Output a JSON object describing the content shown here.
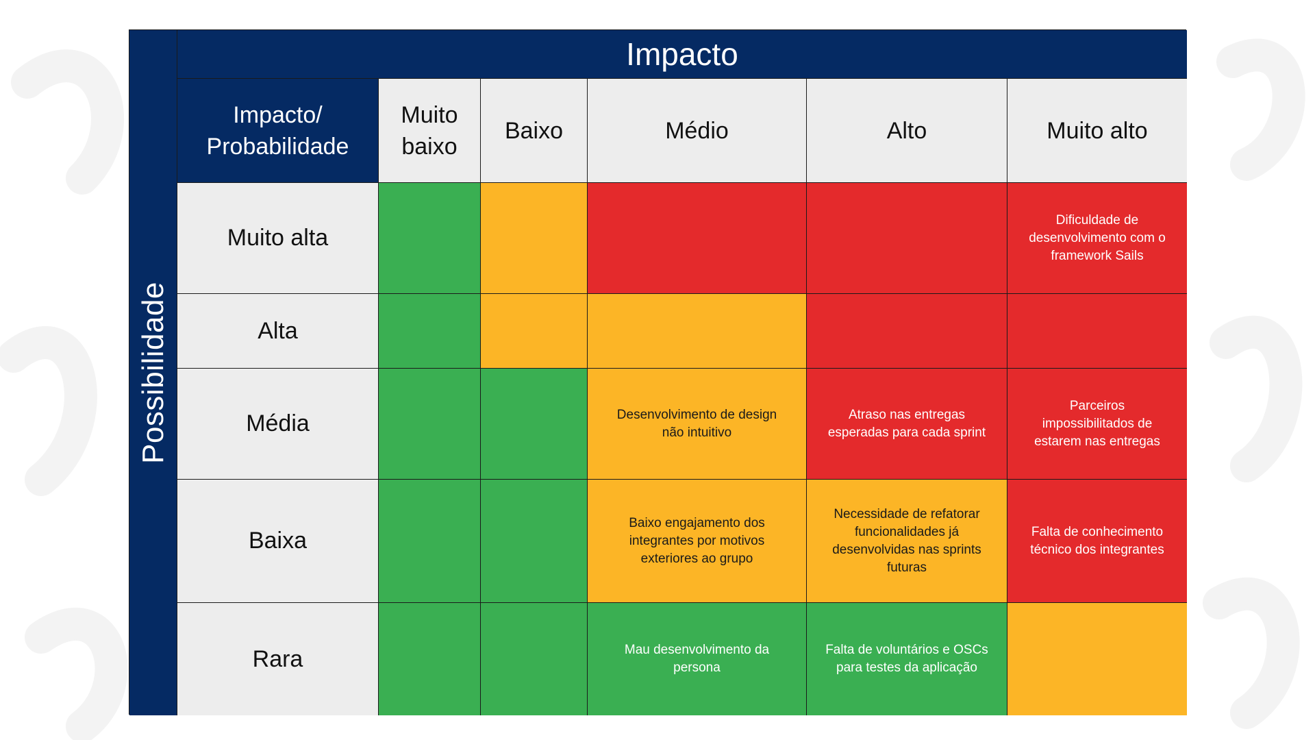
{
  "impact_title": "Impacto",
  "probability_title": "Possibilidade",
  "corner_label_1": "Impacto/",
  "corner_label_2": "Probabilidade",
  "columns": [
    {
      "line1": "Muito",
      "line2": "baixo"
    },
    {
      "line1": "Baixo",
      "line2": ""
    },
    {
      "line1": "Médio",
      "line2": ""
    },
    {
      "line1": "Alto",
      "line2": ""
    },
    {
      "line1": "Muito alto",
      "line2": ""
    }
  ],
  "rows": [
    {
      "label": "Muito alta",
      "cells": [
        {
          "color": "green",
          "text": ""
        },
        {
          "color": "yellow",
          "text": ""
        },
        {
          "color": "red",
          "text": ""
        },
        {
          "color": "red",
          "text": ""
        },
        {
          "color": "red",
          "text": "Dificuldade de desenvolvimento com o framework Sails"
        }
      ]
    },
    {
      "label": "Alta",
      "cells": [
        {
          "color": "green",
          "text": ""
        },
        {
          "color": "yellow",
          "text": ""
        },
        {
          "color": "yellow",
          "text": ""
        },
        {
          "color": "red",
          "text": ""
        },
        {
          "color": "red",
          "text": ""
        }
      ]
    },
    {
      "label": "Média",
      "cells": [
        {
          "color": "green",
          "text": ""
        },
        {
          "color": "green",
          "text": ""
        },
        {
          "color": "yellow",
          "text": "Desenvolvimento de design não intuitivo"
        },
        {
          "color": "red",
          "text": "Atraso nas entregas esperadas para cada sprint"
        },
        {
          "color": "red",
          "text": "Parceiros impossibilitados de estarem nas entregas"
        }
      ]
    },
    {
      "label": "Baixa",
      "cells": [
        {
          "color": "green",
          "text": ""
        },
        {
          "color": "green",
          "text": ""
        },
        {
          "color": "yellow",
          "text": "Baixo engajamento dos integrantes por motivos exteriores ao grupo"
        },
        {
          "color": "yellow",
          "text": "Necessidade de refatorar funcionalidades já desenvolvidas nas sprints futuras"
        },
        {
          "color": "red",
          "text": "Falta de conhecimento técnico dos integrantes"
        }
      ]
    },
    {
      "label": "Rara",
      "cells": [
        {
          "color": "green",
          "text": ""
        },
        {
          "color": "green",
          "text": ""
        },
        {
          "color": "green",
          "text": "Mau desenvolvimento da persona"
        },
        {
          "color": "green",
          "text": "Falta de voluntários e OSCs para testes da aplicação"
        },
        {
          "color": "yellow",
          "text": ""
        }
      ]
    }
  ],
  "colors": {
    "header_navy": "#052a63",
    "header_gray": "#ededed",
    "green": "#3aaf52",
    "yellow": "#fcb526",
    "red": "#e42a2c"
  }
}
